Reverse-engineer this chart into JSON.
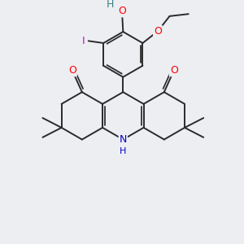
{
  "bg_color": "#edeef2",
  "bond_color": "#2a2a2a",
  "bond_width": 1.4,
  "dbo": 0.05,
  "atom_colors": {
    "O": "#ff0000",
    "N": "#0000cc",
    "I": "#cc00cc",
    "H_O": "#3a8080",
    "C": "#2a2a2a"
  },
  "fs": 9,
  "fs_small": 8
}
